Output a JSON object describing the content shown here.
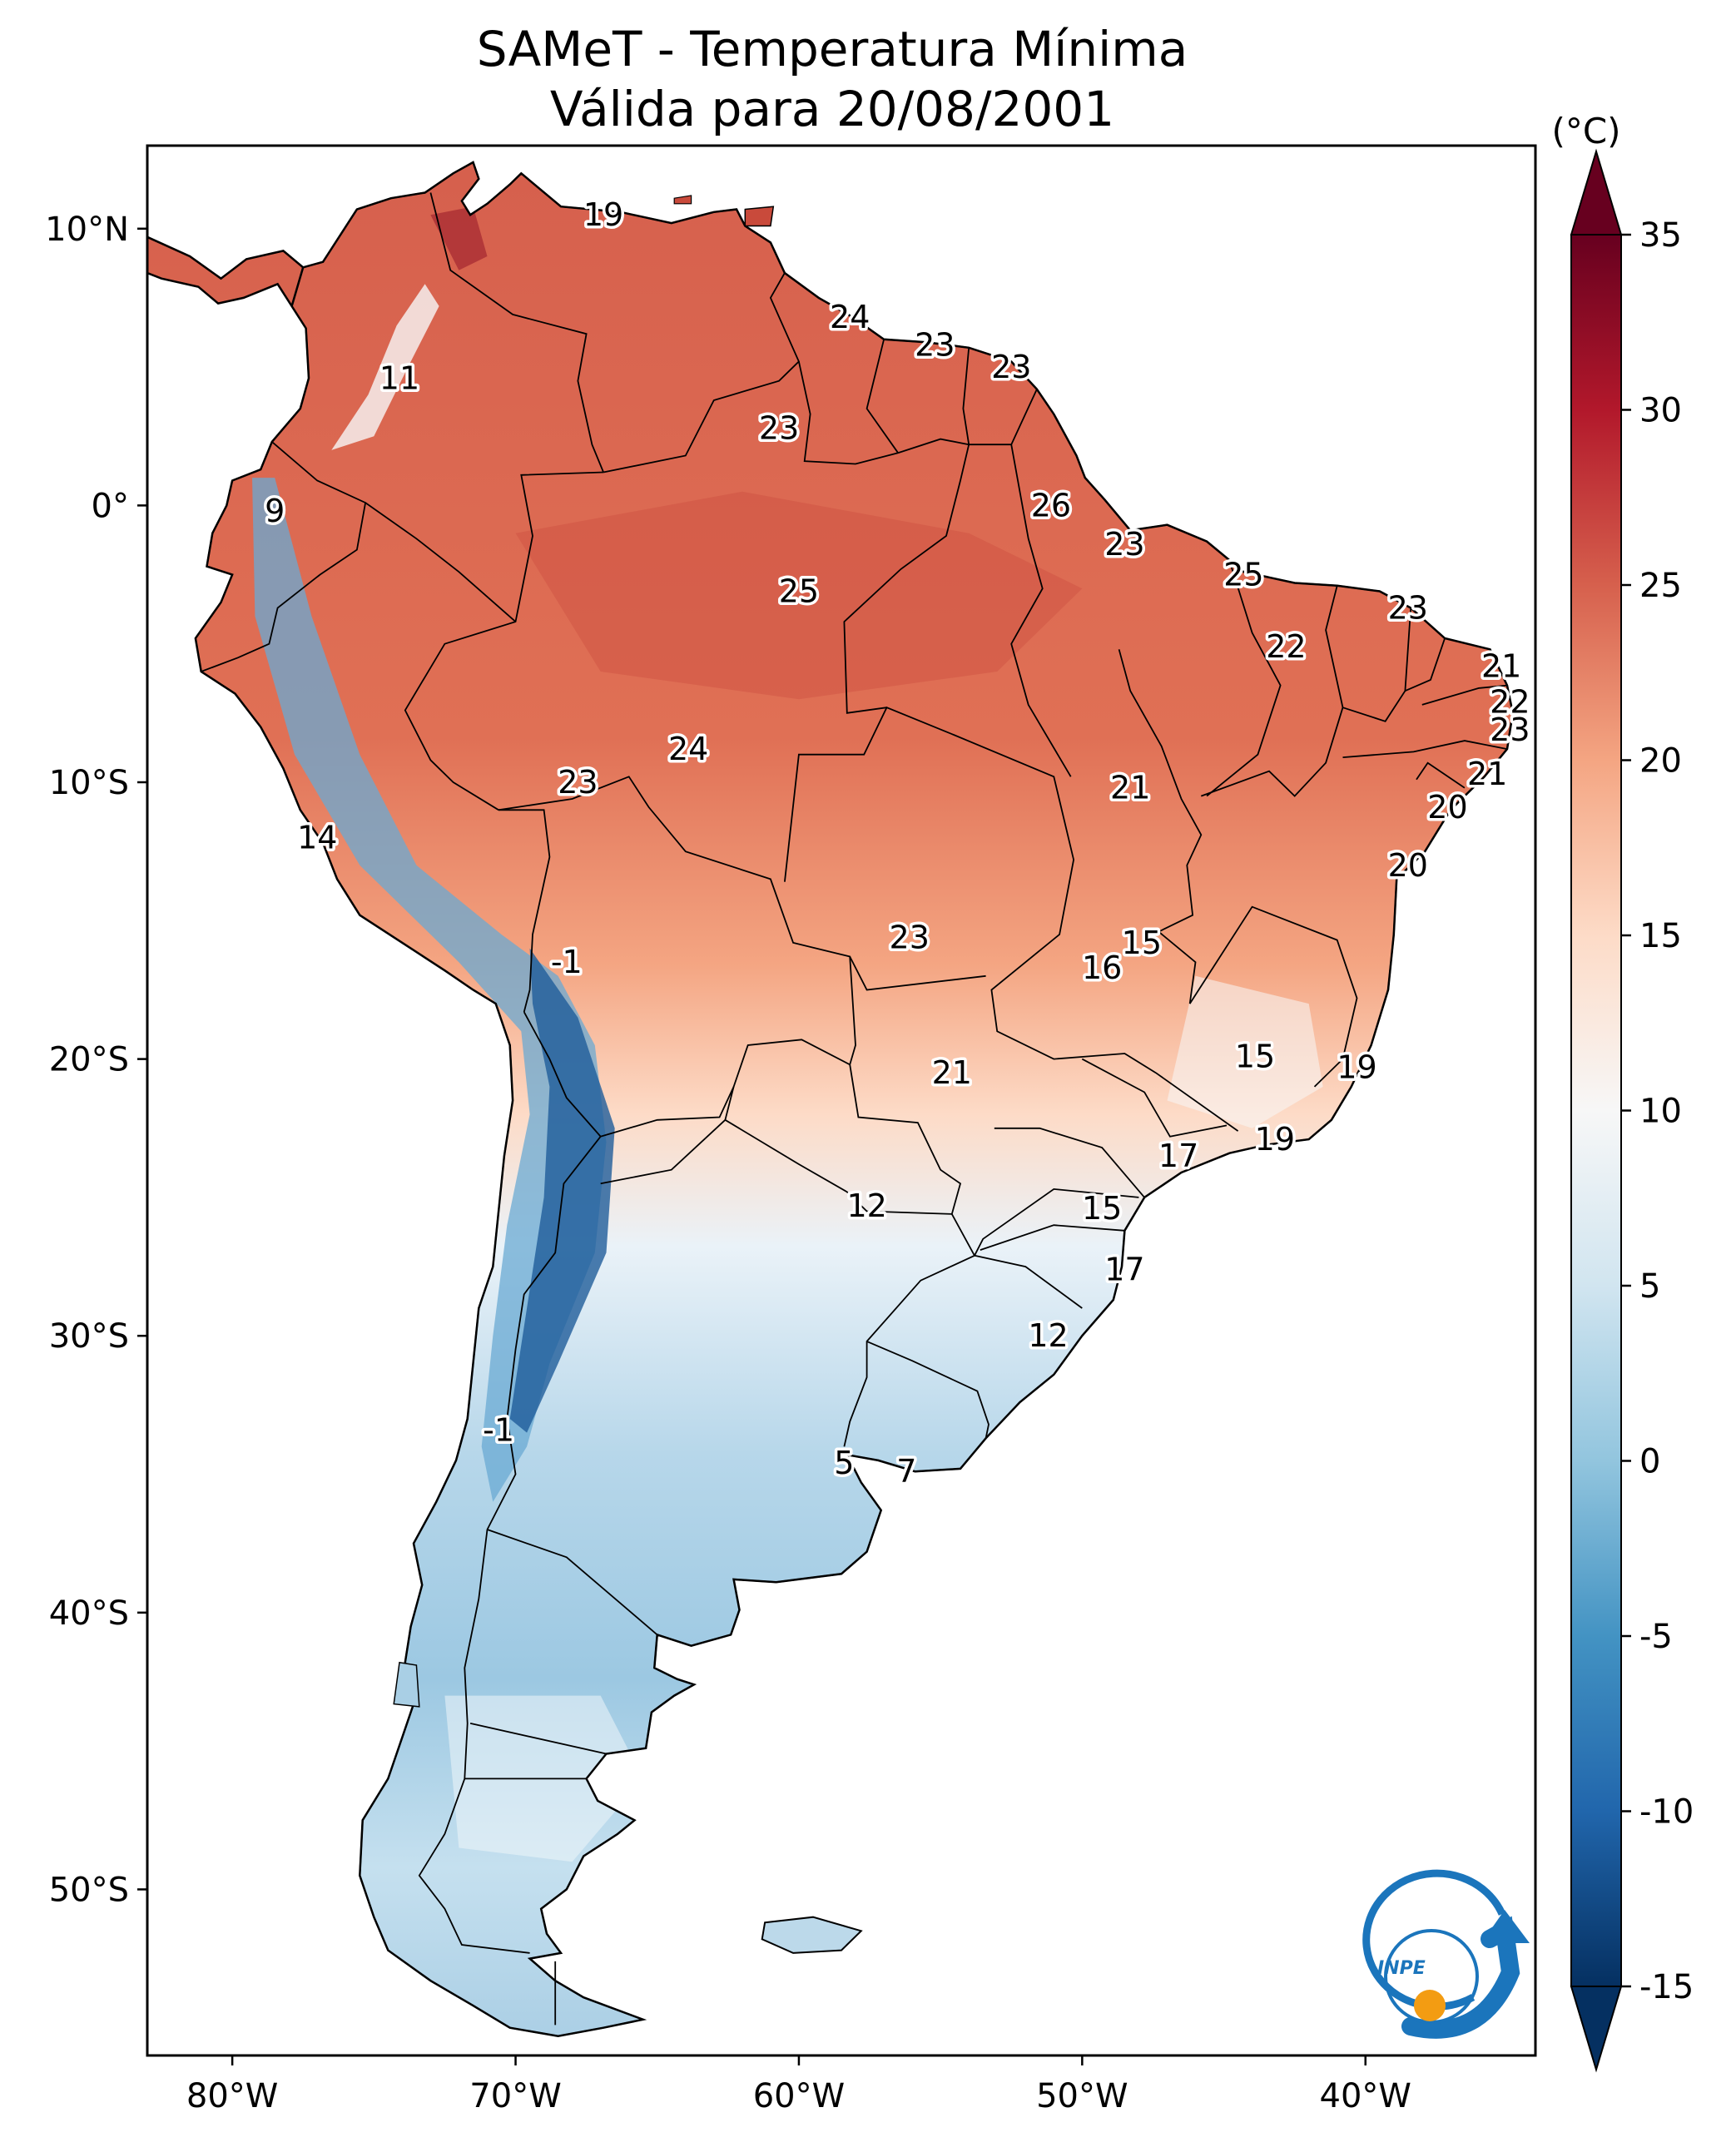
{
  "title_line1": "SAMeT - Temperatura Mínima",
  "title_line2": "Válida para 20/08/2001",
  "colorbar": {
    "unit": "(°C)",
    "min": -15,
    "max": 35,
    "ticks": [
      "35",
      "30",
      "25",
      "20",
      "15",
      "10",
      "5",
      "0",
      "-5",
      "-10",
      "-15"
    ],
    "tick_values": [
      35,
      30,
      25,
      20,
      15,
      10,
      5,
      0,
      -5,
      -10,
      -15
    ],
    "colors": [
      "#053061",
      "#2166ac",
      "#4393c3",
      "#92c5de",
      "#d1e5f0",
      "#f7f7f7",
      "#fddbc7",
      "#f4a582",
      "#d6604d",
      "#b2182b",
      "#67001f"
    ]
  },
  "axes": {
    "lon_labels": [
      "80°W",
      "70°W",
      "60°W",
      "50°W",
      "40°W"
    ],
    "lon_values": [
      -80,
      -70,
      -60,
      -50,
      -40
    ],
    "lat_labels": [
      "10°N",
      "0°",
      "10°S",
      "20°S",
      "30°S",
      "40°S",
      "50°S"
    ],
    "lat_values": [
      10,
      0,
      -10,
      -20,
      -30,
      -40,
      -50
    ],
    "lon_range": [
      -83,
      -34
    ],
    "lat_range": [
      -56,
      13
    ]
  },
  "city_values": [
    {
      "label": "19",
      "lon": -66.9,
      "lat": 10.5
    },
    {
      "label": "24",
      "lon": -58.2,
      "lat": 6.8
    },
    {
      "label": "23",
      "lon": -55.2,
      "lat": 5.8
    },
    {
      "label": "23",
      "lon": -52.5,
      "lat": 5.0
    },
    {
      "label": "11",
      "lon": -74.1,
      "lat": 4.6
    },
    {
      "label": "23",
      "lon": -60.7,
      "lat": 2.8
    },
    {
      "label": "26",
      "lon": -51.1,
      "lat": 0.0
    },
    {
      "label": "9",
      "lon": -78.5,
      "lat": -0.2
    },
    {
      "label": "23",
      "lon": -48.5,
      "lat": -1.4
    },
    {
      "label": "25",
      "lon": -44.3,
      "lat": -2.5
    },
    {
      "label": "25",
      "lon": -60.0,
      "lat": -3.1
    },
    {
      "label": "23",
      "lon": -38.5,
      "lat": -3.7
    },
    {
      "label": "22",
      "lon": -42.8,
      "lat": -5.1
    },
    {
      "label": "21",
      "lon": -35.2,
      "lat": -5.8
    },
    {
      "label": "22",
      "lon": -34.9,
      "lat": -7.1
    },
    {
      "label": "23",
      "lon": -34.9,
      "lat": -8.1
    },
    {
      "label": "24",
      "lon": -63.9,
      "lat": -8.8
    },
    {
      "label": "23",
      "lon": -67.8,
      "lat": -10.0
    },
    {
      "label": "21",
      "lon": -48.3,
      "lat": -10.2
    },
    {
      "label": "21",
      "lon": -35.7,
      "lat": -9.7
    },
    {
      "label": "20",
      "lon": -37.1,
      "lat": -10.9
    },
    {
      "label": "14",
      "lon": -77.0,
      "lat": -12.0
    },
    {
      "label": "20",
      "lon": -38.5,
      "lat": -13.0
    },
    {
      "label": "15",
      "lon": -47.9,
      "lat": -15.8
    },
    {
      "label": "23",
      "lon": -56.1,
      "lat": -15.6
    },
    {
      "label": "16",
      "lon": -49.3,
      "lat": -16.7
    },
    {
      "label": "-1",
      "lon": -68.2,
      "lat": -16.5
    },
    {
      "label": "15",
      "lon": -43.9,
      "lat": -19.9
    },
    {
      "label": "19",
      "lon": -40.3,
      "lat": -20.3
    },
    {
      "label": "21",
      "lon": -54.6,
      "lat": -20.5
    },
    {
      "label": "19",
      "lon": -43.2,
      "lat": -22.9
    },
    {
      "label": "17",
      "lon": -46.6,
      "lat": -23.5
    },
    {
      "label": "12",
      "lon": -57.6,
      "lat": -25.3
    },
    {
      "label": "15",
      "lon": -49.3,
      "lat": -25.4
    },
    {
      "label": "17",
      "lon": -48.5,
      "lat": -27.6
    },
    {
      "label": "12",
      "lon": -51.2,
      "lat": -30.0
    },
    {
      "label": "-1",
      "lon": -70.6,
      "lat": -33.4
    },
    {
      "label": "5",
      "lon": -58.4,
      "lat": -34.6
    },
    {
      "label": "7",
      "lon": -56.2,
      "lat": -34.9
    }
  ],
  "logo": {
    "text": "INPE",
    "ring_color": "#1b75bc",
    "dot_color": "#f39c12"
  }
}
